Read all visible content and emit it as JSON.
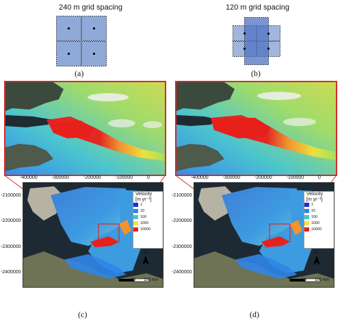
{
  "panel_a": {
    "title": "240 m grid spacing",
    "caption": "(a)"
  },
  "panel_b": {
    "title": "120 m grid spacing",
    "caption": "(b)"
  },
  "panel_c": {
    "caption": "(c)",
    "x_ticks": [
      "-400000",
      "-300000",
      "-200000",
      "-100000",
      "0"
    ],
    "y_ticks": [
      "-2100000",
      "-2200000",
      "-2300000",
      "-2400000"
    ],
    "legend_title_1": "Velocity",
    "legend_title_2": "[m yr⁻¹]",
    "legend_items": [
      "1",
      "10",
      "100",
      "1000",
      "10000"
    ],
    "north_label": "N",
    "scale_labels": [
      "0",
      "50",
      "100 km"
    ]
  },
  "panel_d": {
    "caption": "(d)",
    "x_ticks": [
      "-400000",
      "-300000",
      "-200000",
      "-100000",
      "0"
    ],
    "y_ticks": [
      "-2100000",
      "-2200000",
      "-2300000",
      "-2400000"
    ],
    "legend_title_1": "Velocity",
    "legend_title_2": "[m yr⁻¹]",
    "legend_items": [
      "1",
      "10",
      "100",
      "1000",
      "10000"
    ],
    "north_label": "N",
    "scale_labels": [
      "0",
      "50",
      "100 km"
    ]
  },
  "colors": {
    "grid_cell": "#8fa9d9",
    "grid_cell_overlap": "#6d8fcf",
    "highlight_box": "#d42a2a",
    "legend": [
      "#1a2fd6",
      "#2f86e8",
      "#47c7c9",
      "#a6e05a",
      "#f2e13a",
      "#f5922a",
      "#e8201c"
    ]
  }
}
